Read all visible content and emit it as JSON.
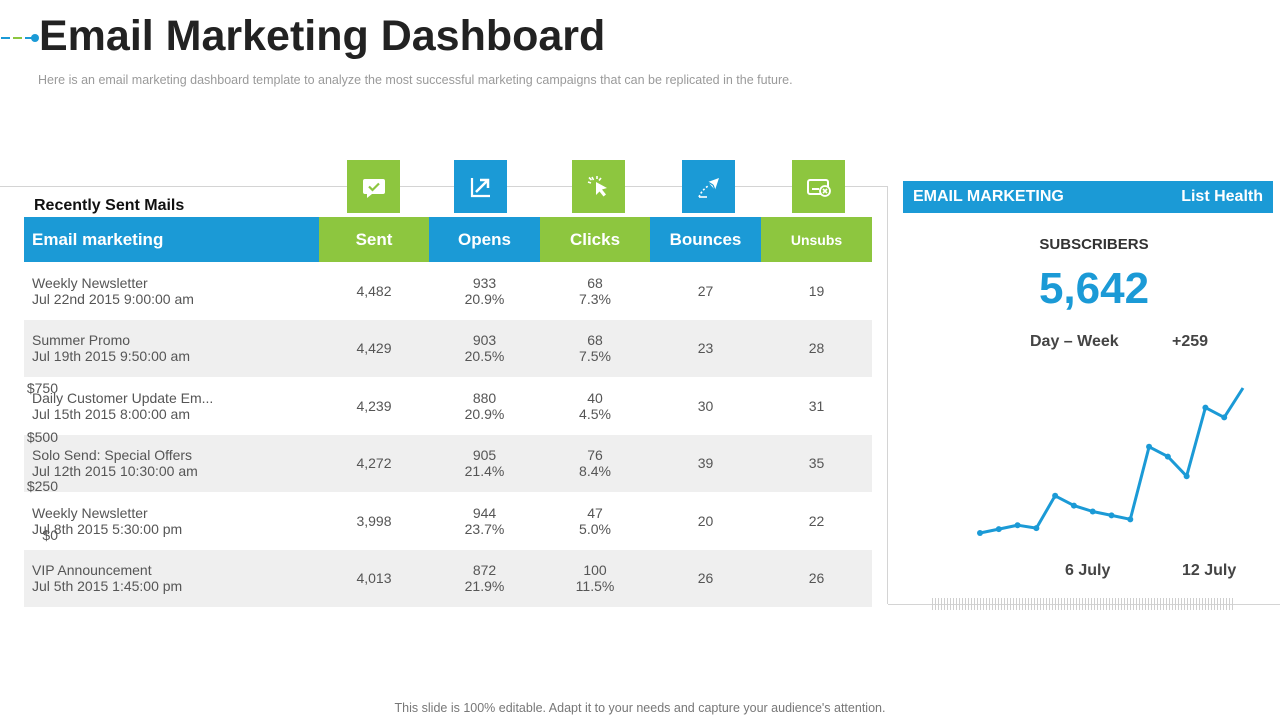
{
  "header": {
    "title": "Email Marketing Dashboard",
    "subtitle": "Here is an email marketing dashboard template to analyze the most successful marketing campaigns that can be replicated in the future."
  },
  "icons": [
    "message-check-icon",
    "arrow-chart-icon",
    "cursor-click-icon",
    "bounce-mail-icon",
    "unsubscribe-icon"
  ],
  "recent": {
    "title": "Recently Sent Mails",
    "columns": [
      "Email marketing",
      "Sent",
      "Opens",
      "Clicks",
      "Bounces",
      "Unsubs"
    ],
    "rows": [
      {
        "name": "Weekly Newsletter",
        "date": "Jul 22nd 2015 9:00:00 am",
        "sent": "4,482",
        "opens": "933",
        "opens_pct": "20.9%",
        "clicks": "68",
        "clicks_pct": "7.3%",
        "bounces": "27",
        "unsubs": "19"
      },
      {
        "name": "Summer Promo",
        "date": "Jul 19th 2015 9:50:00 am",
        "sent": "4,429",
        "opens": "903",
        "opens_pct": "20.5%",
        "clicks": "68",
        "clicks_pct": "7.5%",
        "bounces": "23",
        "unsubs": "28"
      },
      {
        "name": "Daily Customer Update Em...",
        "date": "Jul 15th 2015 8:00:00 am",
        "sent": "4,239",
        "opens": "880",
        "opens_pct": "20.9%",
        "clicks": "40",
        "clicks_pct": "4.5%",
        "bounces": "30",
        "unsubs": "31"
      },
      {
        "name": "Solo Send: Special Offers",
        "date": "Jul 12th 2015 10:30:00 am",
        "sent": "4,272",
        "opens": "905",
        "opens_pct": "21.4%",
        "clicks": "76",
        "clicks_pct": "8.4%",
        "bounces": "39",
        "unsubs": "35"
      },
      {
        "name": "Weekly Newsletter",
        "date": "Jul 8th 2015 5:30:00 pm",
        "sent": "3,998",
        "opens": "944",
        "opens_pct": "23.7%",
        "clicks": "47",
        "clicks_pct": "5.0%",
        "bounces": "20",
        "unsubs": "22"
      },
      {
        "name": "VIP Announcement",
        "date": "Jul 5th 2015 1:45:00 pm",
        "sent": "4,013",
        "opens": "872",
        "opens_pct": "21.9%",
        "clicks": "100",
        "clicks_pct": "11.5%",
        "bounces": "26",
        "unsubs": "26"
      }
    ]
  },
  "panel": {
    "left_header": "EMAIL MARKETING",
    "right_header": "List Health",
    "subscribers_label": "SUBSCRIBERS",
    "subscribers_value": "5,642",
    "period_label": "Day – Week",
    "period_change": "+259"
  },
  "chart_data": {
    "type": "line",
    "y_ticks": [
      "$750",
      "$500",
      "$250",
      "$0"
    ],
    "x_ticks": [
      "6 July",
      "12 July"
    ],
    "ylim": [
      0,
      750
    ],
    "series": [
      {
        "values": [
          10,
          30,
          50,
          35,
          200,
          150,
          120,
          100,
          80,
          450,
          400,
          300,
          650,
          600,
          750
        ]
      }
    ],
    "grid": false
  },
  "colors": {
    "blue": "#1b9ad6",
    "green": "#8dc63f"
  },
  "footer": "This slide is 100% editable. Adapt it to your needs and capture your audience's attention."
}
